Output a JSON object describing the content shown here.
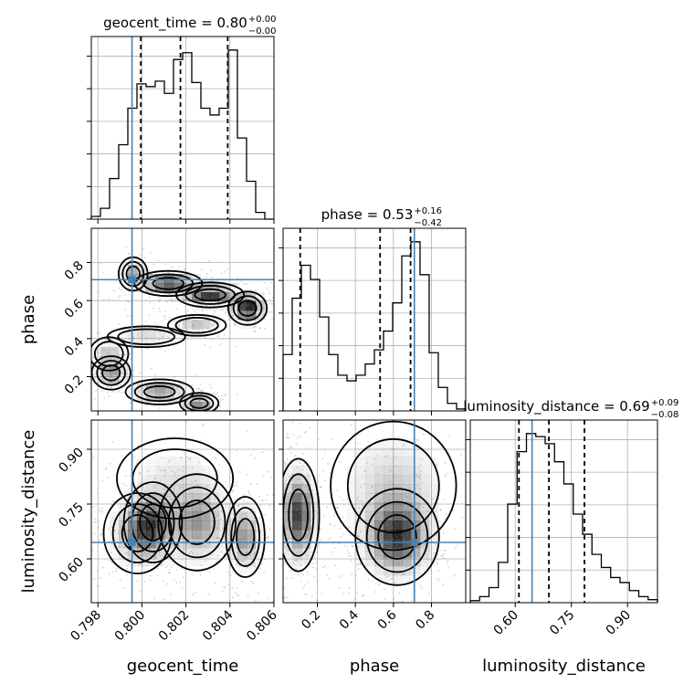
{
  "colors": {
    "truth": "#4682b4",
    "line": "#000000",
    "grid": "#b0b0b0",
    "density": "#000000"
  },
  "chart_data": {
    "type": "corner",
    "parameters": [
      {
        "name": "geocent_time",
        "label": "geocent_time",
        "title_text": "geocent_time = 0.80",
        "title_plus": "+0.00",
        "title_minus": "−0.00",
        "range": [
          0.7977,
          0.806
        ],
        "ticks": [
          0.798,
          0.8,
          0.802,
          0.804,
          0.806
        ],
        "tick_labels": [
          "0.798",
          "0.800",
          "0.802",
          "0.804",
          "0.806"
        ],
        "truth": 0.79955,
        "quantiles": [
          0.79995,
          0.80175,
          0.8039
        ],
        "hist_counts": [
          2,
          8,
          30,
          55,
          82,
          100,
          98,
          102,
          93,
          118,
          123,
          101,
          82,
          77,
          82,
          125,
          60,
          28,
          5,
          0
        ]
      },
      {
        "name": "phase",
        "label": "phase",
        "title_text": "phase = 0.53",
        "title_plus": "+0.16",
        "title_minus": "−0.42",
        "range": [
          0.02,
          0.98
        ],
        "ticks": [
          0.2,
          0.4,
          0.6,
          0.8
        ],
        "tick_labels": [
          "0.2",
          "0.4",
          "0.6",
          "0.8"
        ],
        "truth": 0.71,
        "quantiles": [
          0.11,
          0.53,
          0.69
        ],
        "hist_counts": [
          60,
          120,
          155,
          140,
          100,
          60,
          38,
          32,
          38,
          50,
          65,
          85,
          115,
          165,
          180,
          145,
          62,
          25,
          8,
          2
        ]
      },
      {
        "name": "luminosity_distance",
        "label": "luminosity_distance",
        "title_text": "luminosity_distance = 0.69",
        "title_plus": "+0.09",
        "title_minus": "−0.08",
        "range": [
          0.48,
          0.98
        ],
        "ticks": [
          0.6,
          0.75,
          0.9
        ],
        "tick_labels": [
          "0.60",
          "0.75",
          "0.90"
        ],
        "truth": 0.645,
        "quantiles": [
          0.61,
          0.69,
          0.785
        ],
        "hist_counts": [
          2,
          6,
          15,
          40,
          98,
          150,
          168,
          165,
          158,
          140,
          118,
          88,
          68,
          48,
          35,
          25,
          20,
          12,
          6,
          3
        ]
      }
    ],
    "density_2d": {
      "phase_vs_geocent_time": [
        {
          "x": 0.7996,
          "y": 0.74,
          "sx": 0.0003,
          "sy": 0.04,
          "w": 0.5
        },
        {
          "x": 0.8012,
          "y": 0.69,
          "sx": 0.0007,
          "sy": 0.03,
          "w": 0.9
        },
        {
          "x": 0.8031,
          "y": 0.63,
          "sx": 0.0007,
          "sy": 0.03,
          "w": 0.9
        },
        {
          "x": 0.8048,
          "y": 0.56,
          "sx": 0.0004,
          "sy": 0.04,
          "w": 1.0
        },
        {
          "x": 0.8025,
          "y": 0.47,
          "sx": 0.0006,
          "sy": 0.025,
          "w": 0.35
        },
        {
          "x": 0.8002,
          "y": 0.41,
          "sx": 0.0008,
          "sy": 0.025,
          "w": 0.3
        },
        {
          "x": 0.7985,
          "y": 0.32,
          "sx": 0.0004,
          "sy": 0.04,
          "w": 0.35
        },
        {
          "x": 0.7986,
          "y": 0.22,
          "sx": 0.0004,
          "sy": 0.04,
          "w": 0.55
        },
        {
          "x": 0.8008,
          "y": 0.12,
          "sx": 0.0007,
          "sy": 0.03,
          "w": 0.6
        },
        {
          "x": 0.8026,
          "y": 0.06,
          "sx": 0.0004,
          "sy": 0.025,
          "w": 0.7
        }
      ],
      "luminosity_distance_vs_geocent_time": [
        {
          "x": 0.7998,
          "y": 0.67,
          "sx": 0.0007,
          "sy": 0.05,
          "w": 0.8
        },
        {
          "x": 0.8005,
          "y": 0.7,
          "sx": 0.0006,
          "sy": 0.05,
          "w": 1.0
        },
        {
          "x": 0.8025,
          "y": 0.7,
          "sx": 0.0008,
          "sy": 0.06,
          "w": 0.9
        },
        {
          "x": 0.8047,
          "y": 0.66,
          "sx": 0.0004,
          "sy": 0.05,
          "w": 0.9
        },
        {
          "x": 0.8015,
          "y": 0.82,
          "sx": 0.0012,
          "sy": 0.05,
          "w": 0.3
        }
      ],
      "luminosity_distance_vs_phase": [
        {
          "x": 0.1,
          "y": 0.72,
          "sx": 0.05,
          "sy": 0.07,
          "w": 1.0
        },
        {
          "x": 0.62,
          "y": 0.66,
          "sx": 0.1,
          "sy": 0.06,
          "w": 1.0
        },
        {
          "x": 0.6,
          "y": 0.8,
          "sx": 0.15,
          "sy": 0.08,
          "w": 0.35
        }
      ]
    }
  }
}
